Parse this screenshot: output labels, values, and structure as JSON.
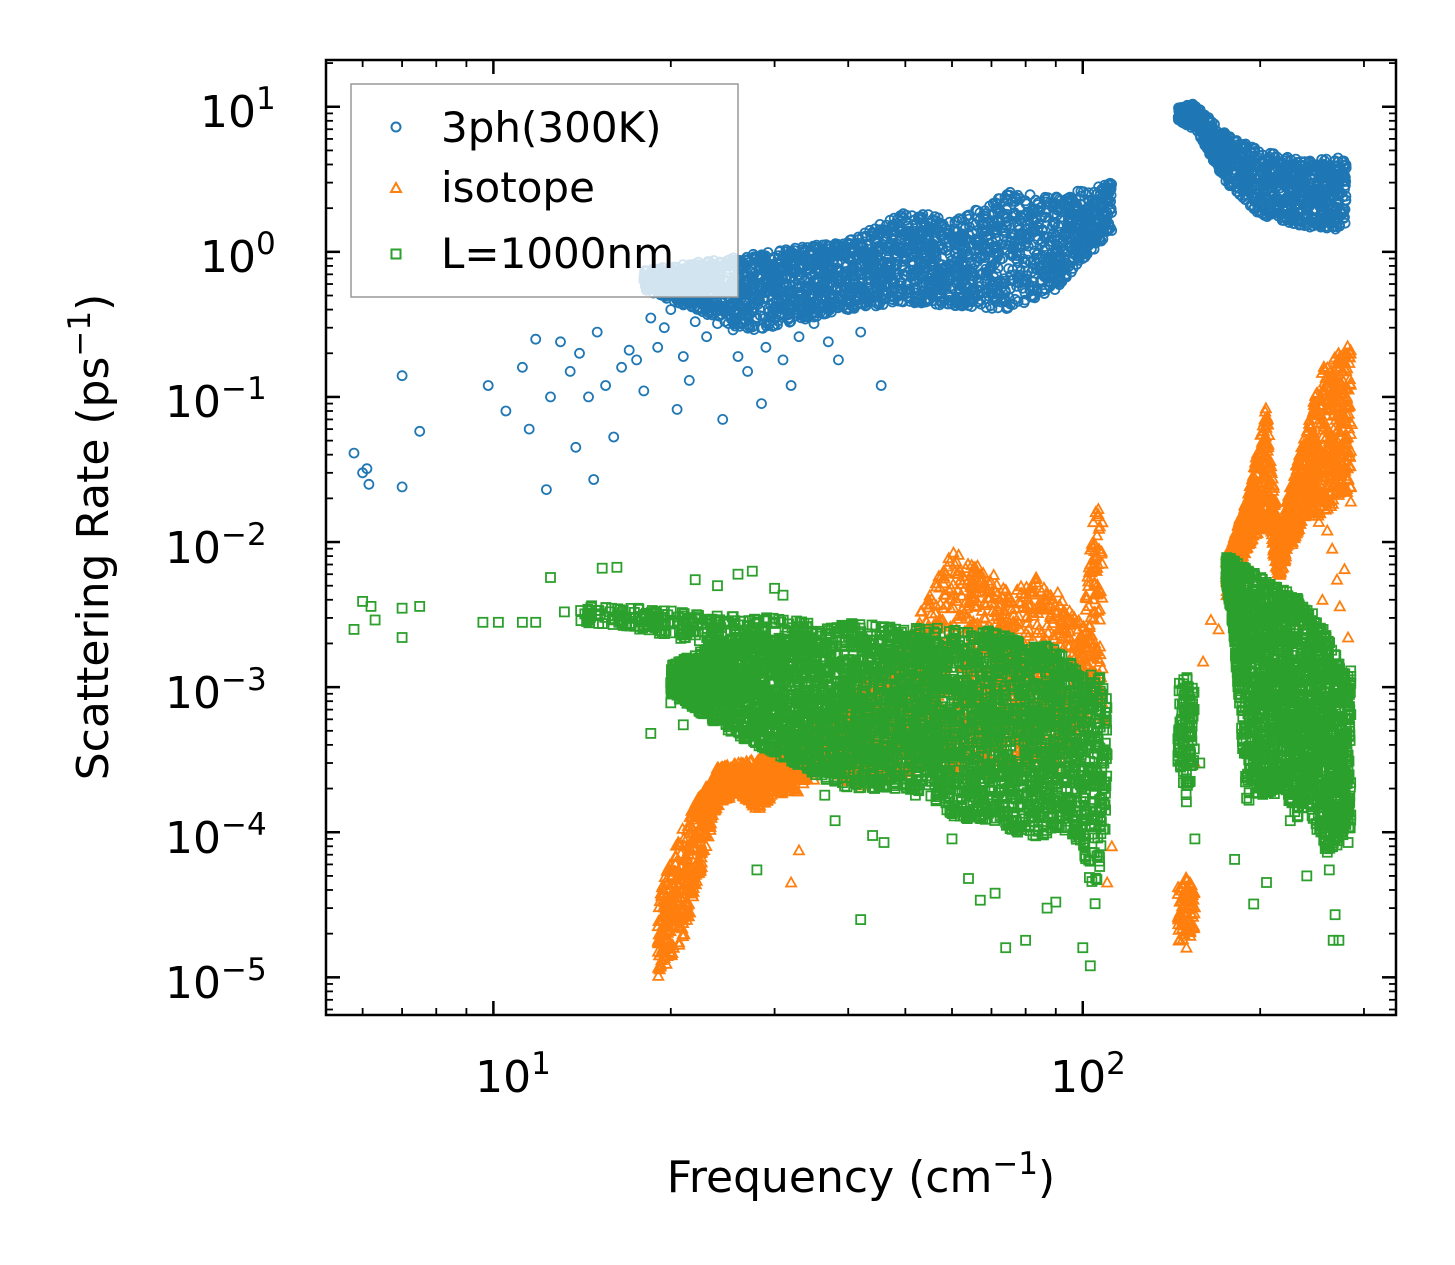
{
  "chart_data": {
    "type": "scatter",
    "title": "",
    "xlabel": "Frequency (cm",
    "xlabel_sup": "−1",
    "xlabel_end": ")",
    "ylabel": "Scattering Rate (ps",
    "ylabel_sup": "−1",
    "ylabel_end": ")",
    "xscale": "log",
    "yscale": "log",
    "xlim": [
      5.2,
      340
    ],
    "ylim": [
      5.5e-06,
      21
    ],
    "x_ticks": [
      {
        "base": "10",
        "exp": "1"
      },
      {
        "base": "10",
        "exp": "2"
      }
    ],
    "y_ticks": [
      {
        "base": "10",
        "exp": "1"
      },
      {
        "base": "10",
        "exp": "0"
      },
      {
        "base": "10",
        "exp": "−1"
      },
      {
        "base": "10",
        "exp": "−2"
      },
      {
        "base": "10",
        "exp": "−3"
      },
      {
        "base": "10",
        "exp": "−4"
      },
      {
        "base": "10",
        "exp": "−5"
      }
    ],
    "legend_position": "top-left",
    "series": [
      {
        "name": "3ph(300K)",
        "color": "#1f77b4",
        "marker": "circle",
        "points": [
          [
            5.8,
            0.041
          ],
          [
            6.0,
            0.03
          ],
          [
            6.1,
            0.032
          ],
          [
            6.15,
            0.025
          ],
          [
            7.0,
            0.14
          ],
          [
            7.0,
            0.024
          ],
          [
            7.5,
            0.058
          ],
          [
            9.8,
            0.12
          ],
          [
            10.5,
            0.08
          ],
          [
            11.2,
            0.16
          ],
          [
            11.5,
            0.06
          ],
          [
            11.8,
            0.25
          ],
          [
            12.3,
            0.023
          ],
          [
            12.5,
            0.1
          ],
          [
            13.0,
            0.24
          ],
          [
            13.5,
            0.15
          ],
          [
            13.8,
            0.045
          ],
          [
            14.0,
            0.2
          ],
          [
            14.5,
            0.1
          ],
          [
            14.8,
            0.027
          ],
          [
            15.0,
            0.28
          ],
          [
            15.5,
            0.12
          ],
          [
            16.0,
            0.053
          ],
          [
            16.5,
            0.16
          ],
          [
            17.0,
            0.21
          ],
          [
            17.5,
            0.18
          ],
          [
            18.0,
            0.11
          ],
          [
            18.5,
            0.35
          ],
          [
            19.0,
            0.22
          ],
          [
            19.5,
            0.3
          ],
          [
            20.0,
            0.4
          ],
          [
            20.5,
            0.082
          ],
          [
            21.0,
            0.19
          ],
          [
            21.5,
            0.13
          ],
          [
            22.0,
            0.33
          ],
          [
            22.5,
            0.45
          ],
          [
            23.0,
            0.26
          ],
          [
            24.0,
            0.32
          ],
          [
            24.5,
            0.07
          ],
          [
            25.5,
            0.29
          ],
          [
            26.0,
            0.19
          ],
          [
            27.0,
            0.15
          ],
          [
            28.0,
            0.35
          ],
          [
            28.5,
            0.09
          ],
          [
            29.0,
            0.22
          ],
          [
            30.0,
            0.31
          ],
          [
            31.0,
            0.18
          ],
          [
            32.0,
            0.12
          ],
          [
            33.0,
            0.26
          ],
          [
            35.0,
            0.32
          ],
          [
            37.0,
            0.24
          ],
          [
            38.5,
            0.18
          ],
          [
            40.0,
            0.4
          ],
          [
            42.0,
            0.28
          ],
          [
            45.5,
            0.12
          ]
        ],
        "bands": [
          {
            "x": [
              18,
              27,
              40,
              50,
              62,
              75,
              90,
              112
            ],
            "ylo": [
              0.55,
              0.28,
              0.4,
              0.45,
              0.42,
              0.4,
              0.55,
              1.4
            ],
            "yhi": [
              0.75,
              0.95,
              1.2,
              1.9,
              1.7,
              2.6,
              2.4,
              3.0
            ],
            "n": 2600
          },
          {
            "x": [
              145,
              155,
              175,
              200,
              235,
              280
            ],
            "ylo": [
              8.0,
              7.0,
              3.0,
              1.8,
              1.5,
              1.4
            ],
            "yhi": [
              10.0,
              10.5,
              6.5,
              5.0,
              4.3,
              4.5
            ],
            "n": 1100
          }
        ]
      },
      {
        "name": "isotope",
        "color": "#ff7f0e",
        "marker": "triangle",
        "points": [
          [
            32,
            4.5e-05
          ],
          [
            33,
            7.5e-05
          ],
          [
            35,
            0.00023
          ],
          [
            40,
            0.0003
          ],
          [
            42,
            0.00021
          ],
          [
            45,
            0.0012
          ],
          [
            48,
            0.00046
          ],
          [
            70,
            0.00042
          ],
          [
            78,
            0.0003
          ],
          [
            85,
            0.00055
          ],
          [
            110,
            4.5e-05
          ],
          [
            112,
            8e-05
          ],
          [
            150,
            1.6e-05
          ],
          [
            152,
            4.5e-05
          ],
          [
            155,
            0.0003
          ],
          [
            160,
            0.0015
          ],
          [
            165,
            0.0029
          ],
          [
            170,
            0.0025
          ],
          [
            220,
            0.0013
          ],
          [
            235,
            0.0028
          ],
          [
            255,
            0.004
          ],
          [
            260,
            0.012
          ],
          [
            265,
            0.009
          ],
          [
            270,
            0.0055
          ],
          [
            273,
            0.0036
          ],
          [
            278,
            0.0065
          ],
          [
            282,
            0.0022
          ],
          [
            285,
            0.019
          ],
          [
            286,
            0.065
          ]
        ],
        "bands": [
          {
            "x": [
              19,
              21,
              24,
              26,
              28,
              30,
              33,
              36,
              40,
              45,
              50,
              55,
              60,
              65,
              70,
              75,
              80,
              85,
              90,
              95,
              100,
              105,
              108
            ],
            "ylo": [
              1e-05,
              1.8e-05,
              0.00015,
              0.00019,
              0.00014,
              0.00018,
              0.00019,
              0.0003,
              0.00022,
              0.00023,
              0.00025,
              0.00035,
              0.00022,
              0.00025,
              0.00026,
              0.00028,
              0.00026,
              0.00025,
              0.00028,
              0.0004,
              0.0004,
              0.0011,
              0.0004
            ],
            "yhi": [
              3.5e-05,
              0.00012,
              0.00028,
              0.0003,
              0.00032,
              0.0004,
              0.0005,
              0.0006,
              0.0008,
              0.0015,
              0.002,
              0.0045,
              0.009,
              0.0072,
              0.0062,
              0.0045,
              0.0052,
              0.006,
              0.0048,
              0.0035,
              0.0028,
              0.019,
              0.019
            ],
            "n": 3000
          },
          {
            "x": [
              145,
              150,
              155
            ],
            "ylo": [
              1.5e-05,
              1.8e-05,
              2e-05
            ],
            "yhi": [
              4.5e-05,
              5e-05,
              4e-05
            ],
            "n": 80
          },
          {
            "x": [
              175,
              190,
              205,
              215,
              225,
              240,
              255,
              270,
              285
            ],
            "ylo": [
              0.004,
              0.009,
              0.014,
              0.0055,
              0.009,
              0.016,
              0.013,
              0.021,
              0.02
            ],
            "yhi": [
              0.008,
              0.02,
              0.09,
              0.011,
              0.025,
              0.06,
              0.16,
              0.2,
              0.25
            ],
            "n": 1300
          }
        ]
      },
      {
        "name": "L=1000nm",
        "color": "#2ca02c",
        "marker": "square",
        "points": [
          [
            5.8,
            0.0025
          ],
          [
            6.0,
            0.0039
          ],
          [
            6.2,
            0.0036
          ],
          [
            6.3,
            0.0029
          ],
          [
            7.0,
            0.0035
          ],
          [
            7.0,
            0.0022
          ],
          [
            7.5,
            0.0036
          ],
          [
            9.6,
            0.0028
          ],
          [
            10.2,
            0.0028
          ],
          [
            11.2,
            0.0028
          ],
          [
            11.8,
            0.0028
          ],
          [
            12.5,
            0.0057
          ],
          [
            13.2,
            0.0033
          ],
          [
            14.5,
            0.0032
          ],
          [
            15.3,
            0.0066
          ],
          [
            16.2,
            0.0067
          ],
          [
            17.0,
            0.003
          ],
          [
            18.5,
            0.00048
          ],
          [
            20.0,
            0.00078
          ],
          [
            21.0,
            0.00055
          ],
          [
            22.0,
            0.0055
          ],
          [
            24.0,
            0.005
          ],
          [
            26.0,
            0.006
          ],
          [
            27.5,
            0.0063
          ],
          [
            28.0,
            5.5e-05
          ],
          [
            30.0,
            0.0048
          ],
          [
            31.0,
            0.0043
          ],
          [
            33.0,
            0.0024
          ],
          [
            34.5,
            0.0012
          ],
          [
            36.5,
            0.00018
          ],
          [
            38.0,
            0.00012
          ],
          [
            42.0,
            2.5e-05
          ],
          [
            44.0,
            9.5e-05
          ],
          [
            46.0,
            8.5e-05
          ],
          [
            52.0,
            0.00018
          ],
          [
            60.0,
            9e-05
          ],
          [
            64.0,
            4.8e-05
          ],
          [
            67.0,
            3.4e-05
          ],
          [
            71.0,
            3.8e-05
          ],
          [
            74.0,
            1.6e-05
          ],
          [
            80.0,
            1.8e-05
          ],
          [
            87.0,
            3e-05
          ],
          [
            90.0,
            3.3e-05
          ],
          [
            100.0,
            1.6e-05
          ],
          [
            103.0,
            1.2e-05
          ],
          [
            105.0,
            0.00013
          ],
          [
            150.0,
            0.00026
          ],
          [
            155.0,
            9e-05
          ],
          [
            158.0,
            0.0003
          ],
          [
            181.0,
            6.5e-05
          ],
          [
            195.0,
            3.2e-05
          ],
          [
            205.0,
            4.5e-05
          ],
          [
            225.0,
            0.00012
          ],
          [
            240.0,
            5e-05
          ],
          [
            262.0,
            5.5e-05
          ],
          [
            266.0,
            1.8e-05
          ],
          [
            268.0,
            2.7e-05
          ],
          [
            272.0,
            1.8e-05
          ],
          [
            282.0,
            8.5e-05
          ]
        ],
        "bands": [
          {
            "x": [
              14,
              18,
              21,
              25,
              30,
              35
            ],
            "ylo": [
              0.0027,
              0.0025,
              0.0021,
              0.002,
              0.0018,
              0.0018
            ],
            "yhi": [
              0.0037,
              0.0035,
              0.0033,
              0.0031,
              0.003,
              0.0028
            ],
            "n": 300
          },
          {
            "x": [
              20,
              25,
              30,
              35,
              40,
              45,
              50,
              55,
              60,
              65,
              70,
              75,
              80,
              85,
              90,
              95,
              100,
              105,
              110
            ],
            "ylo": [
              0.0009,
              0.0005,
              0.00035,
              0.00025,
              0.0002,
              0.0002,
              0.0002,
              0.00018,
              0.00013,
              0.00012,
              0.00012,
              0.0001,
              0.0001,
              9e-05,
              0.0001,
              0.0001,
              8e-05,
              3e-05,
              0.00012
            ],
            "yhi": [
              0.0014,
              0.0022,
              0.0022,
              0.0024,
              0.0028,
              0.0027,
              0.0025,
              0.0026,
              0.0025,
              0.0024,
              0.0025,
              0.0022,
              0.002,
              0.002,
              0.0018,
              0.0015,
              0.0012,
              0.0013,
              0.001
            ],
            "n": 4200
          },
          {
            "x": [
              145,
              150,
              155
            ],
            "ylo": [
              0.0003,
              0.00015,
              0.00035
            ],
            "yhi": [
              0.0011,
              0.0012,
              0.0009
            ],
            "n": 120
          },
          {
            "x": [
              175,
              180,
              190,
              200,
              210,
              220,
              230,
              240,
              250,
              260,
              270,
              280,
              285
            ],
            "ylo": [
              0.0055,
              0.0025,
              0.00015,
              0.00018,
              0.00018,
              0.0002,
              0.00012,
              0.00016,
              0.0001,
              7e-05,
              8e-05,
              0.0001,
              0.0001
            ],
            "yhi": [
              0.008,
              0.0075,
              0.0065,
              0.0058,
              0.0052,
              0.0048,
              0.0042,
              0.0035,
              0.003,
              0.0022,
              0.0016,
              0.0012,
              0.0013
            ],
            "n": 2200
          }
        ]
      }
    ]
  }
}
